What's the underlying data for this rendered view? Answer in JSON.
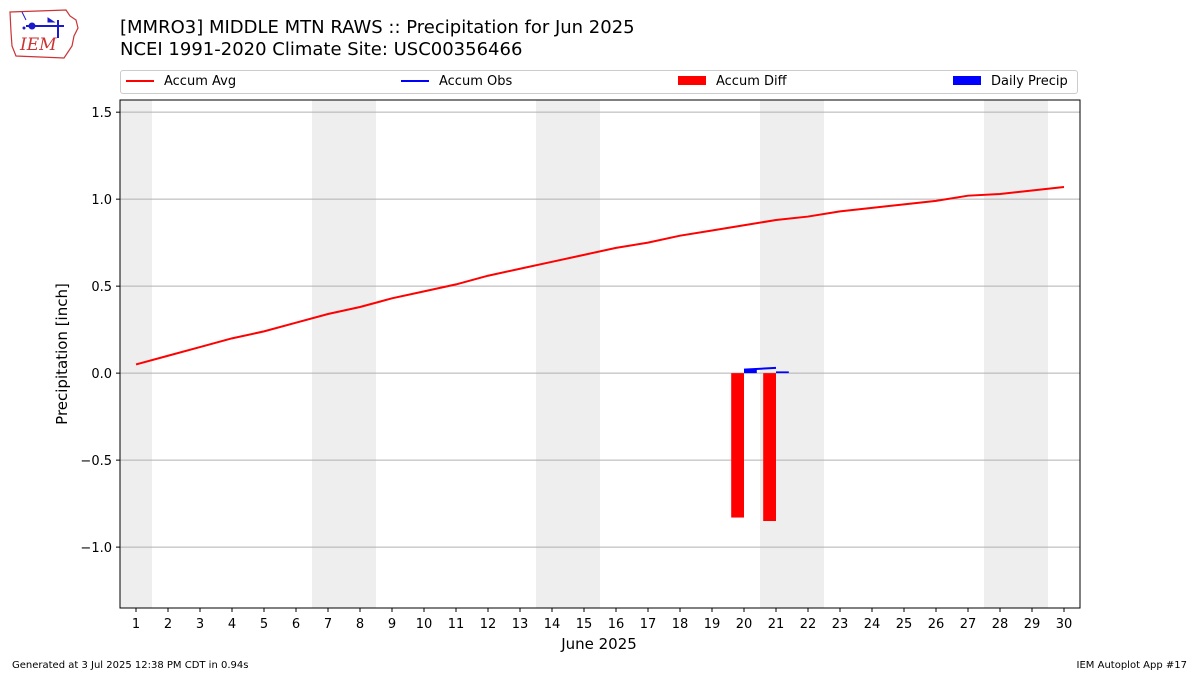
{
  "header": {
    "title_line1": "[MMRO3] MIDDLE MTN RAWS :: Precipitation for Jun 2025",
    "title_line2": "NCEI 1991-2020 Climate Site: USC00356466",
    "logo_text": "IEM"
  },
  "legend": {
    "items": [
      {
        "label": "Accum Avg",
        "color": "#ff0000",
        "kind": "line"
      },
      {
        "label": "Accum Obs",
        "color": "#0000ff",
        "kind": "line"
      },
      {
        "label": "Accum Diff",
        "color": "#ff0000",
        "kind": "bar"
      },
      {
        "label": "Daily Precip",
        "color": "#0000ff",
        "kind": "bar"
      }
    ]
  },
  "footer": {
    "left": "Generated at 3 Jul 2025 12:38 PM CDT in 0.94s",
    "right": "IEM Autoplot App #17"
  },
  "chart_data": {
    "type": "line",
    "xlabel": "June 2025",
    "ylabel": "Precipitation [inch]",
    "xlim": [
      0.5,
      30.5
    ],
    "ylim": [
      -1.35,
      1.57
    ],
    "x_ticks": [
      1,
      2,
      3,
      4,
      5,
      6,
      7,
      8,
      9,
      10,
      11,
      12,
      13,
      14,
      15,
      16,
      17,
      18,
      19,
      20,
      21,
      22,
      23,
      24,
      25,
      26,
      27,
      28,
      29,
      30
    ],
    "y_ticks": [
      -1.0,
      -0.5,
      0.0,
      0.5,
      1.0,
      1.5
    ],
    "y_tick_labels": [
      "−1.0",
      "−0.5",
      "0.0",
      "0.5",
      "1.0",
      "1.5"
    ],
    "grid": "horizontal",
    "legend_position": "top",
    "weekend_shading": [
      [
        0.5,
        1.5
      ],
      [
        6.5,
        8.5
      ],
      [
        13.5,
        15.5
      ],
      [
        20.5,
        22.5
      ],
      [
        27.5,
        29.5
      ]
    ],
    "series": [
      {
        "name": "Accum Avg",
        "kind": "line",
        "color": "#ff0000",
        "x": [
          1,
          2,
          3,
          4,
          5,
          6,
          7,
          8,
          9,
          10,
          11,
          12,
          13,
          14,
          15,
          16,
          17,
          18,
          19,
          20,
          21,
          22,
          23,
          24,
          25,
          26,
          27,
          28,
          29,
          30
        ],
        "values": [
          0.05,
          0.1,
          0.15,
          0.2,
          0.24,
          0.29,
          0.34,
          0.38,
          0.43,
          0.47,
          0.51,
          0.56,
          0.6,
          0.64,
          0.68,
          0.72,
          0.75,
          0.79,
          0.82,
          0.85,
          0.88,
          0.9,
          0.93,
          0.95,
          0.97,
          0.99,
          1.02,
          1.03,
          1.05,
          1.07
        ]
      },
      {
        "name": "Accum Obs",
        "kind": "line",
        "color": "#0000ff",
        "x": [
          20,
          21
        ],
        "values": [
          0.02,
          0.03
        ]
      },
      {
        "name": "Accum Diff",
        "kind": "bar",
        "color": "#ff0000",
        "x": [
          20,
          21
        ],
        "values": [
          -0.83,
          -0.85
        ]
      },
      {
        "name": "Daily Precip",
        "kind": "bar",
        "color": "#0000ff",
        "x": [
          20,
          21
        ],
        "values": [
          0.02,
          0.01
        ]
      }
    ]
  }
}
